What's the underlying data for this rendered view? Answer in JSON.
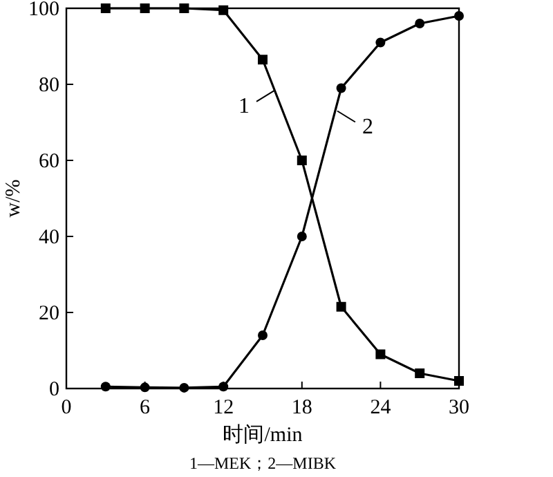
{
  "chart_data": {
    "type": "line",
    "xlabel": "时间/min",
    "ylabel": "w/%",
    "x": [
      3,
      6,
      9,
      12,
      15,
      18,
      21,
      24,
      27,
      30
    ],
    "series": [
      {
        "color": "#000000",
        "marker": "square",
        "values": [
          100,
          100,
          100,
          99.5,
          86.5,
          60,
          21.5,
          9,
          4,
          2
        ]
      },
      {
        "color": "#000000",
        "marker": "circle",
        "values": [
          0.5,
          0.3,
          0.2,
          0.5,
          14,
          40,
          79,
          91,
          96,
          98
        ]
      }
    ],
    "xlim": [
      0,
      30
    ],
    "xticks": [
      0,
      6,
      12,
      18,
      24,
      30
    ],
    "ylim": [
      0,
      100
    ],
    "yticks": [
      0,
      20,
      40,
      60,
      80,
      100
    ],
    "grid": false,
    "line_style": "solid",
    "annotations": [
      {
        "text": "1",
        "x": 15.9,
        "y": 78.4
      },
      {
        "text": "2",
        "x": 20.7,
        "y": 73
      },
      "1—MEK；2—MIBK"
    ]
  }
}
